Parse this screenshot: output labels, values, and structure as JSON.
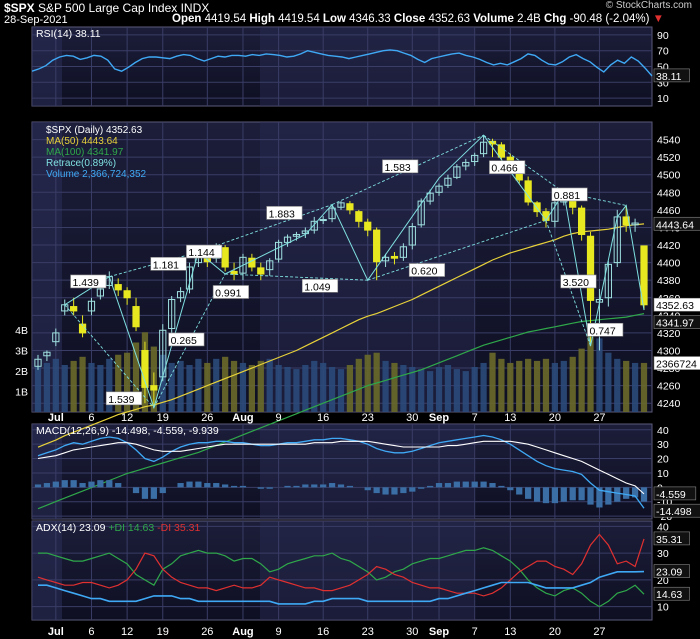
{
  "header": {
    "symbol": "$SPX",
    "name": "S&P 500 Large Cap Index",
    "exchange": "INDX",
    "date": "28-Sep-2021",
    "open_label": "Open",
    "open": "4419.54",
    "high_label": "High",
    "high": "4419.54",
    "low_label": "Low",
    "low": "4346.33",
    "close_label": "Close",
    "close": "4352.63",
    "volume_label": "Volume",
    "volume": "2.4B",
    "chg_label": "Chg",
    "chg": "-90.48 (-2.04%)",
    "chg_arrow": "▼",
    "watermark": "© StockCharts.com"
  },
  "colors": {
    "rsi": "#3fa9f5",
    "ma50": "#e8d23a",
    "ma100": "#2fa84a",
    "retrace": "#7fe0e0",
    "volume_up": "#2b4a7a",
    "volume_down": "#6a6a2a",
    "candle": "#e8e820",
    "macd": "#ffffff",
    "signal": "#3fa9f5",
    "adx": "#3fa9f5",
    "plus_di": "#2fa84a",
    "minus_di": "#e03030"
  },
  "chart_data": [
    {
      "type": "line",
      "panel": "rsi",
      "legend": "RSI(14) 38.11",
      "ylim": [
        0,
        100
      ],
      "y_ticks": [
        10,
        30,
        50,
        70,
        90
      ],
      "last_label": "38.11",
      "values": [
        44,
        47,
        51,
        58,
        62,
        64,
        63,
        59,
        61,
        64,
        63,
        58,
        47,
        44,
        49,
        55,
        60,
        62,
        62,
        61,
        60,
        63,
        65,
        64,
        60,
        57,
        60,
        63,
        62,
        64,
        64,
        63,
        65,
        64,
        66,
        65,
        64,
        62,
        63,
        66,
        70,
        68,
        66,
        64,
        63,
        62,
        60,
        62,
        64,
        66,
        68,
        70,
        71,
        70,
        67,
        64,
        59,
        55,
        60,
        62,
        64,
        66,
        67,
        64,
        62,
        59,
        55,
        52,
        54,
        52,
        56,
        60,
        66,
        64,
        58,
        53,
        52,
        56,
        62,
        65,
        60,
        56,
        49,
        43,
        52,
        58,
        54,
        62,
        57,
        48,
        38
      ]
    },
    {
      "type": "candlestick",
      "panel": "price",
      "legend": [
        "$SPX (Daily) 4352.63",
        "MA(50) 4443.64",
        "MA(100) 4341.97",
        "Retrace(0.89%)",
        "Volume 2,366,724,352"
      ],
      "ylim": [
        4230,
        4560
      ],
      "y_ticks": [
        4240,
        4260,
        4280,
        4300,
        4320,
        4340,
        4360,
        4380,
        4400,
        4420,
        4440,
        4460,
        4480,
        4500,
        4520,
        4540
      ],
      "x_tick_labels": [
        "Jul",
        "6",
        "12",
        "19",
        "26",
        "Aug",
        "9",
        "16",
        "23",
        "30",
        "Sep",
        "7",
        "13",
        "20",
        "27"
      ],
      "price_labels": [
        "4443.64",
        "4352.63",
        "4341.97"
      ],
      "volume_axis": [
        "4B",
        "3B",
        "2B",
        "1B"
      ],
      "volume_label": "2366724",
      "retrace_labels": [
        "1.439",
        "1.181",
        "1.539",
        "0.265",
        "1.144",
        "0.991",
        "1.883",
        "1.049",
        "1.583",
        "0.620",
        "0.466",
        "0.881",
        "3.520",
        "0.747"
      ],
      "closes": [
        4290,
        4298,
        4320,
        4352,
        4345,
        4320,
        4356,
        4370,
        4384,
        4369,
        4360,
        4327,
        4258,
        4255,
        4323,
        4358,
        4367,
        4395,
        4412,
        4401,
        4419,
        4395,
        4387,
        4406,
        4395,
        4387,
        4402,
        4423,
        4429,
        4432,
        4436,
        4447,
        4449,
        4462,
        4468,
        4460,
        4447,
        4437,
        4401,
        4406,
        4405,
        4418,
        4441,
        4470,
        4479,
        4487,
        4496,
        4509,
        4514,
        4522,
        4537,
        4535,
        4520,
        4513,
        4494,
        4469,
        4458,
        4448,
        4468,
        4480,
        4463,
        4432,
        4357,
        4358,
        4398,
        4452,
        4443,
        4445,
        4352
      ],
      "opens": [
        4282,
        4294,
        4310,
        4345,
        4350,
        4330,
        4345,
        4362,
        4374,
        4375,
        4368,
        4350,
        4300,
        4260,
        4270,
        4325,
        4360,
        4370,
        4400,
        4410,
        4405,
        4417,
        4390,
        4388,
        4405,
        4394,
        4392,
        4404,
        4423,
        4430,
        4433,
        4437,
        4448,
        4450,
        4463,
        4467,
        4458,
        4446,
        4437,
        4402,
        4407,
        4406,
        4420,
        4443,
        4470,
        4480,
        4488,
        4497,
        4510,
        4515,
        4524,
        4538,
        4534,
        4520,
        4513,
        4493,
        4468,
        4458,
        4447,
        4469,
        4480,
        4462,
        4430,
        4355,
        4360,
        4400,
        4452,
        4443,
        4419
      ],
      "highs": [
        4295,
        4300,
        4325,
        4358,
        4360,
        4340,
        4360,
        4375,
        4390,
        4382,
        4372,
        4360,
        4310,
        4275,
        4330,
        4362,
        4372,
        4400,
        4415,
        4415,
        4422,
        4420,
        4400,
        4410,
        4410,
        4400,
        4405,
        4426,
        4432,
        4435,
        4440,
        4452,
        4453,
        4466,
        4470,
        4470,
        4460,
        4450,
        4440,
        4410,
        4412,
        4422,
        4445,
        4473,
        4483,
        4490,
        4500,
        4512,
        4518,
        4525,
        4545,
        4541,
        4537,
        4524,
        4515,
        4498,
        4470,
        4462,
        4472,
        4485,
        4481,
        4465,
        4435,
        4370,
        4402,
        4460,
        4465,
        4450,
        4419
      ],
      "lows": [
        4278,
        4288,
        4305,
        4340,
        4340,
        4315,
        4340,
        4358,
        4370,
        4362,
        4352,
        4322,
        4240,
        4235,
        4265,
        4320,
        4355,
        4365,
        4395,
        4395,
        4400,
        4390,
        4380,
        4380,
        4390,
        4380,
        4385,
        4400,
        4418,
        4425,
        4428,
        4433,
        4444,
        4446,
        4460,
        4455,
        4440,
        4430,
        4380,
        4395,
        4398,
        4402,
        4415,
        4440,
        4466,
        4476,
        4485,
        4495,
        4505,
        4510,
        4520,
        4520,
        4515,
        4505,
        4490,
        4465,
        4452,
        4440,
        4440,
        4465,
        4455,
        4425,
        4305,
        4300,
        4350,
        4395,
        4435,
        4435,
        4346
      ],
      "ma50": [
        4190,
        4194,
        4198,
        4203,
        4207,
        4211,
        4215,
        4219,
        4223,
        4227,
        4230,
        4233,
        4236,
        4238,
        4241,
        4244,
        4248,
        4252,
        4256,
        4260,
        4264,
        4268,
        4272,
        4276,
        4280,
        4284,
        4288,
        4292,
        4296,
        4300,
        4305,
        4310,
        4315,
        4320,
        4325,
        4330,
        4335,
        4339,
        4342,
        4346,
        4350,
        4354,
        4358,
        4363,
        4368,
        4373,
        4378,
        4383,
        4388,
        4393,
        4398,
        4403,
        4407,
        4411,
        4414,
        4417,
        4420,
        4423,
        4426,
        4430,
        4433,
        4435,
        4436,
        4437,
        4438,
        4440,
        4442,
        4443,
        4444
      ],
      "ma100": [
        4120,
        4124,
        4128,
        4132,
        4136,
        4140,
        4144,
        4148,
        4152,
        4156,
        4160,
        4163,
        4166,
        4169,
        4172,
        4175,
        4178,
        4181,
        4184,
        4188,
        4192,
        4196,
        4200,
        4204,
        4208,
        4212,
        4216,
        4220,
        4224,
        4228,
        4232,
        4236,
        4240,
        4244,
        4248,
        4252,
        4256,
        4260,
        4263,
        4266,
        4269,
        4272,
        4275,
        4278,
        4282,
        4286,
        4290,
        4294,
        4298,
        4302,
        4306,
        4309,
        4312,
        4315,
        4318,
        4321,
        4323,
        4325,
        4327,
        4329,
        4331,
        4333,
        4334,
        4335,
        4336,
        4337,
        4338,
        4340,
        4342
      ],
      "volume": [
        2.2,
        2.4,
        2.6,
        2.3,
        2.5,
        2.7,
        2.4,
        2.3,
        2.6,
        2.8,
        2.9,
        3.4,
        3.9,
        3.2,
        2.8,
        2.4,
        2.5,
        2.3,
        2.6,
        2.4,
        2.6,
        2.7,
        2.5,
        2.4,
        2.3,
        2.5,
        2.6,
        2.3,
        2.2,
        2.1,
        2.3,
        2.5,
        2.4,
        2.2,
        2.1,
        2.3,
        2.6,
        2.8,
        2.9,
        2.5,
        2.4,
        2.3,
        2.2,
        2.1,
        2.0,
        2.2,
        2.3,
        2.1,
        2.0,
        2.2,
        2.4,
        2.9,
        2.6,
        2.4,
        2.5,
        2.6,
        2.5,
        2.6,
        2.4,
        2.5,
        2.7,
        3.1,
        4.3,
        3.6,
        2.9,
        2.6,
        2.5,
        2.4,
        2.4
      ]
    },
    {
      "type": "line",
      "panel": "macd",
      "legend": "MACD(12,26,9) -14.498, -4.559, -9.939",
      "ylim": [
        -22,
        44
      ],
      "y_ticks": [
        -20,
        -10,
        0,
        10,
        20,
        30,
        40
      ],
      "last_labels": [
        "-4.559",
        "-14.498"
      ],
      "macd": [
        22,
        24,
        26,
        29,
        31,
        30,
        32,
        34,
        35,
        34,
        31,
        26,
        20,
        18,
        21,
        25,
        28,
        30,
        31,
        31,
        32,
        32,
        31,
        31,
        30,
        29,
        29,
        30,
        31,
        31,
        32,
        33,
        33,
        34,
        34,
        33,
        32,
        30,
        27,
        25,
        24,
        24,
        25,
        27,
        29,
        31,
        32,
        33,
        34,
        35,
        36,
        35,
        33,
        30,
        26,
        22,
        18,
        15,
        13,
        12,
        11,
        9,
        3,
        -2,
        -3,
        -4,
        -5,
        -6,
        -14.5
      ],
      "signal": [
        20,
        21,
        22,
        24,
        26,
        27,
        28,
        29,
        30,
        31,
        31,
        30,
        28,
        26,
        25,
        25,
        25,
        26,
        27,
        28,
        29,
        30,
        30,
        30,
        30,
        30,
        30,
        30,
        30,
        30,
        30,
        31,
        31,
        31,
        32,
        32,
        32,
        32,
        31,
        30,
        29,
        28,
        28,
        28,
        28,
        28,
        29,
        29,
        30,
        31,
        32,
        32,
        32,
        32,
        31,
        30,
        28,
        26,
        24,
        22,
        20,
        18,
        15,
        12,
        9,
        6,
        3,
        1,
        -4.559
      ],
      "histogram": [
        2,
        3,
        4,
        5,
        5,
        3,
        4,
        5,
        5,
        3,
        0,
        -4,
        -8,
        -8,
        -4,
        0,
        3,
        4,
        4,
        3,
        3,
        2,
        1,
        1,
        0,
        -1,
        -1,
        0,
        1,
        1,
        2,
        2,
        2,
        3,
        2,
        1,
        0,
        -2,
        -4,
        -5,
        -5,
        -4,
        -3,
        -1,
        1,
        3,
        3,
        4,
        4,
        4,
        4,
        3,
        1,
        -2,
        -5,
        -8,
        -10,
        -11,
        -11,
        -10,
        -9,
        -9,
        -12,
        -14,
        -12,
        -10,
        -8,
        -7,
        -9.939
      ]
    },
    {
      "type": "line",
      "panel": "adx",
      "legend_adx": "ADX(14) 23.09",
      "legend_plus": "+DI 14.63",
      "legend_minus": "-DI 35.31",
      "ylim": [
        5,
        42
      ],
      "y_ticks": [
        10,
        20,
        30,
        40
      ],
      "last_labels": [
        "35.31",
        "23.09",
        "14.63"
      ],
      "adx": [
        18,
        18,
        17,
        16,
        15,
        14,
        13,
        13,
        12,
        12,
        12,
        12,
        13,
        14,
        14,
        14,
        13,
        13,
        12,
        12,
        12,
        12,
        12,
        12,
        12,
        12,
        12,
        11,
        11,
        11,
        11,
        12,
        12,
        13,
        13,
        13,
        13,
        12,
        12,
        12,
        12,
        12,
        12,
        12,
        12,
        13,
        13,
        14,
        15,
        16,
        17,
        18,
        19,
        19,
        19,
        19,
        18,
        17,
        17,
        17,
        17,
        18,
        19,
        21,
        22,
        23,
        23,
        23,
        23.09
      ],
      "plus_di": [
        30,
        30,
        29,
        28,
        27,
        27,
        28,
        29,
        30,
        28,
        26,
        22,
        20,
        18,
        24,
        26,
        29,
        30,
        31,
        30,
        30,
        29,
        27,
        28,
        28,
        26,
        23,
        24,
        26,
        27,
        28,
        29,
        29,
        30,
        28,
        27,
        25,
        23,
        20,
        21,
        23,
        24,
        26,
        27,
        28,
        28,
        29,
        30,
        31,
        31,
        32,
        31,
        29,
        27,
        24,
        20,
        17,
        15,
        14,
        16,
        17,
        15,
        12,
        10,
        12,
        15,
        16,
        18,
        14.63
      ],
      "minus_di": [
        21,
        20,
        19,
        18,
        18,
        19,
        19,
        18,
        17,
        18,
        20,
        24,
        30,
        29,
        24,
        21,
        19,
        18,
        17,
        17,
        16,
        17,
        18,
        17,
        17,
        18,
        21,
        20,
        19,
        18,
        17,
        17,
        16,
        16,
        17,
        18,
        20,
        22,
        25,
        24,
        22,
        21,
        19,
        18,
        17,
        17,
        16,
        15,
        15,
        15,
        14,
        15,
        17,
        20,
        23,
        25,
        27,
        27,
        25,
        24,
        22,
        26,
        33,
        37,
        33,
        26,
        27,
        25,
        35.31
      ]
    }
  ]
}
